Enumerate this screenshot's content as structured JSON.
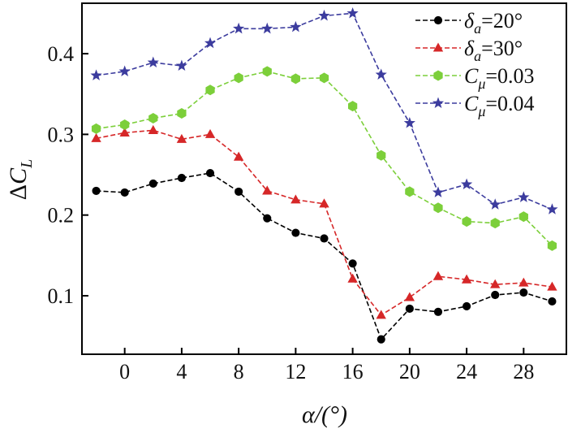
{
  "chart_data": {
    "type": "line",
    "title": "",
    "xlabel": "α/(°)",
    "ylabel": "ΔC_L",
    "xlim": [
      -3,
      31
    ],
    "ylim": [
      0.0275,
      0.4625
    ],
    "xticks": [
      0,
      4,
      8,
      12,
      16,
      20,
      24,
      28
    ],
    "xtick_labels": [
      "0",
      "4",
      "8",
      "12",
      "16",
      "20",
      "24",
      "28"
    ],
    "yticks": [
      0.1,
      0.2,
      0.3,
      0.4
    ],
    "ytick_labels": [
      "0.1",
      "0.2",
      "0.3",
      "0.4"
    ],
    "grid": false,
    "legend_position": "top-right",
    "x": [
      -2,
      0,
      2,
      4,
      6,
      8,
      10,
      12,
      14,
      16,
      18,
      20,
      22,
      24,
      26,
      28,
      30
    ],
    "series": [
      {
        "name": "δa=20°",
        "legend_main": "δ",
        "legend_sub": "a",
        "legend_value": "=20°",
        "color": "#000000",
        "marker": "circle",
        "values": [
          0.23,
          0.228,
          0.239,
          0.246,
          0.252,
          0.229,
          0.196,
          0.178,
          0.171,
          0.14,
          0.046,
          0.084,
          0.08,
          0.087,
          0.101,
          0.104,
          0.093
        ]
      },
      {
        "name": "δa=30°",
        "legend_main": "δ",
        "legend_sub": "a",
        "legend_value": "=30°",
        "color": "#d62728",
        "marker": "triangle",
        "values": [
          0.295,
          0.302,
          0.305,
          0.294,
          0.3,
          0.272,
          0.23,
          0.219,
          0.214,
          0.121,
          0.076,
          0.098,
          0.124,
          0.12,
          0.114,
          0.116,
          0.111
        ]
      },
      {
        "name": "Cμ=0.03",
        "legend_main": "C",
        "legend_sub": "μ",
        "legend_value": "=0.03",
        "color": "#7ccf3a",
        "marker": "hexagon",
        "values": [
          0.307,
          0.312,
          0.32,
          0.326,
          0.355,
          0.37,
          0.378,
          0.369,
          0.37,
          0.335,
          0.274,
          0.229,
          0.209,
          0.192,
          0.19,
          0.198,
          0.162
        ]
      },
      {
        "name": "Cμ=0.04",
        "legend_main": "C",
        "legend_sub": "μ",
        "legend_value": "=0.04",
        "color": "#3c3c9e",
        "marker": "star",
        "values": [
          0.373,
          0.378,
          0.389,
          0.385,
          0.413,
          0.431,
          0.431,
          0.433,
          0.447,
          0.45,
          0.374,
          0.314,
          0.228,
          0.238,
          0.213,
          0.222,
          0.207
        ]
      }
    ]
  }
}
